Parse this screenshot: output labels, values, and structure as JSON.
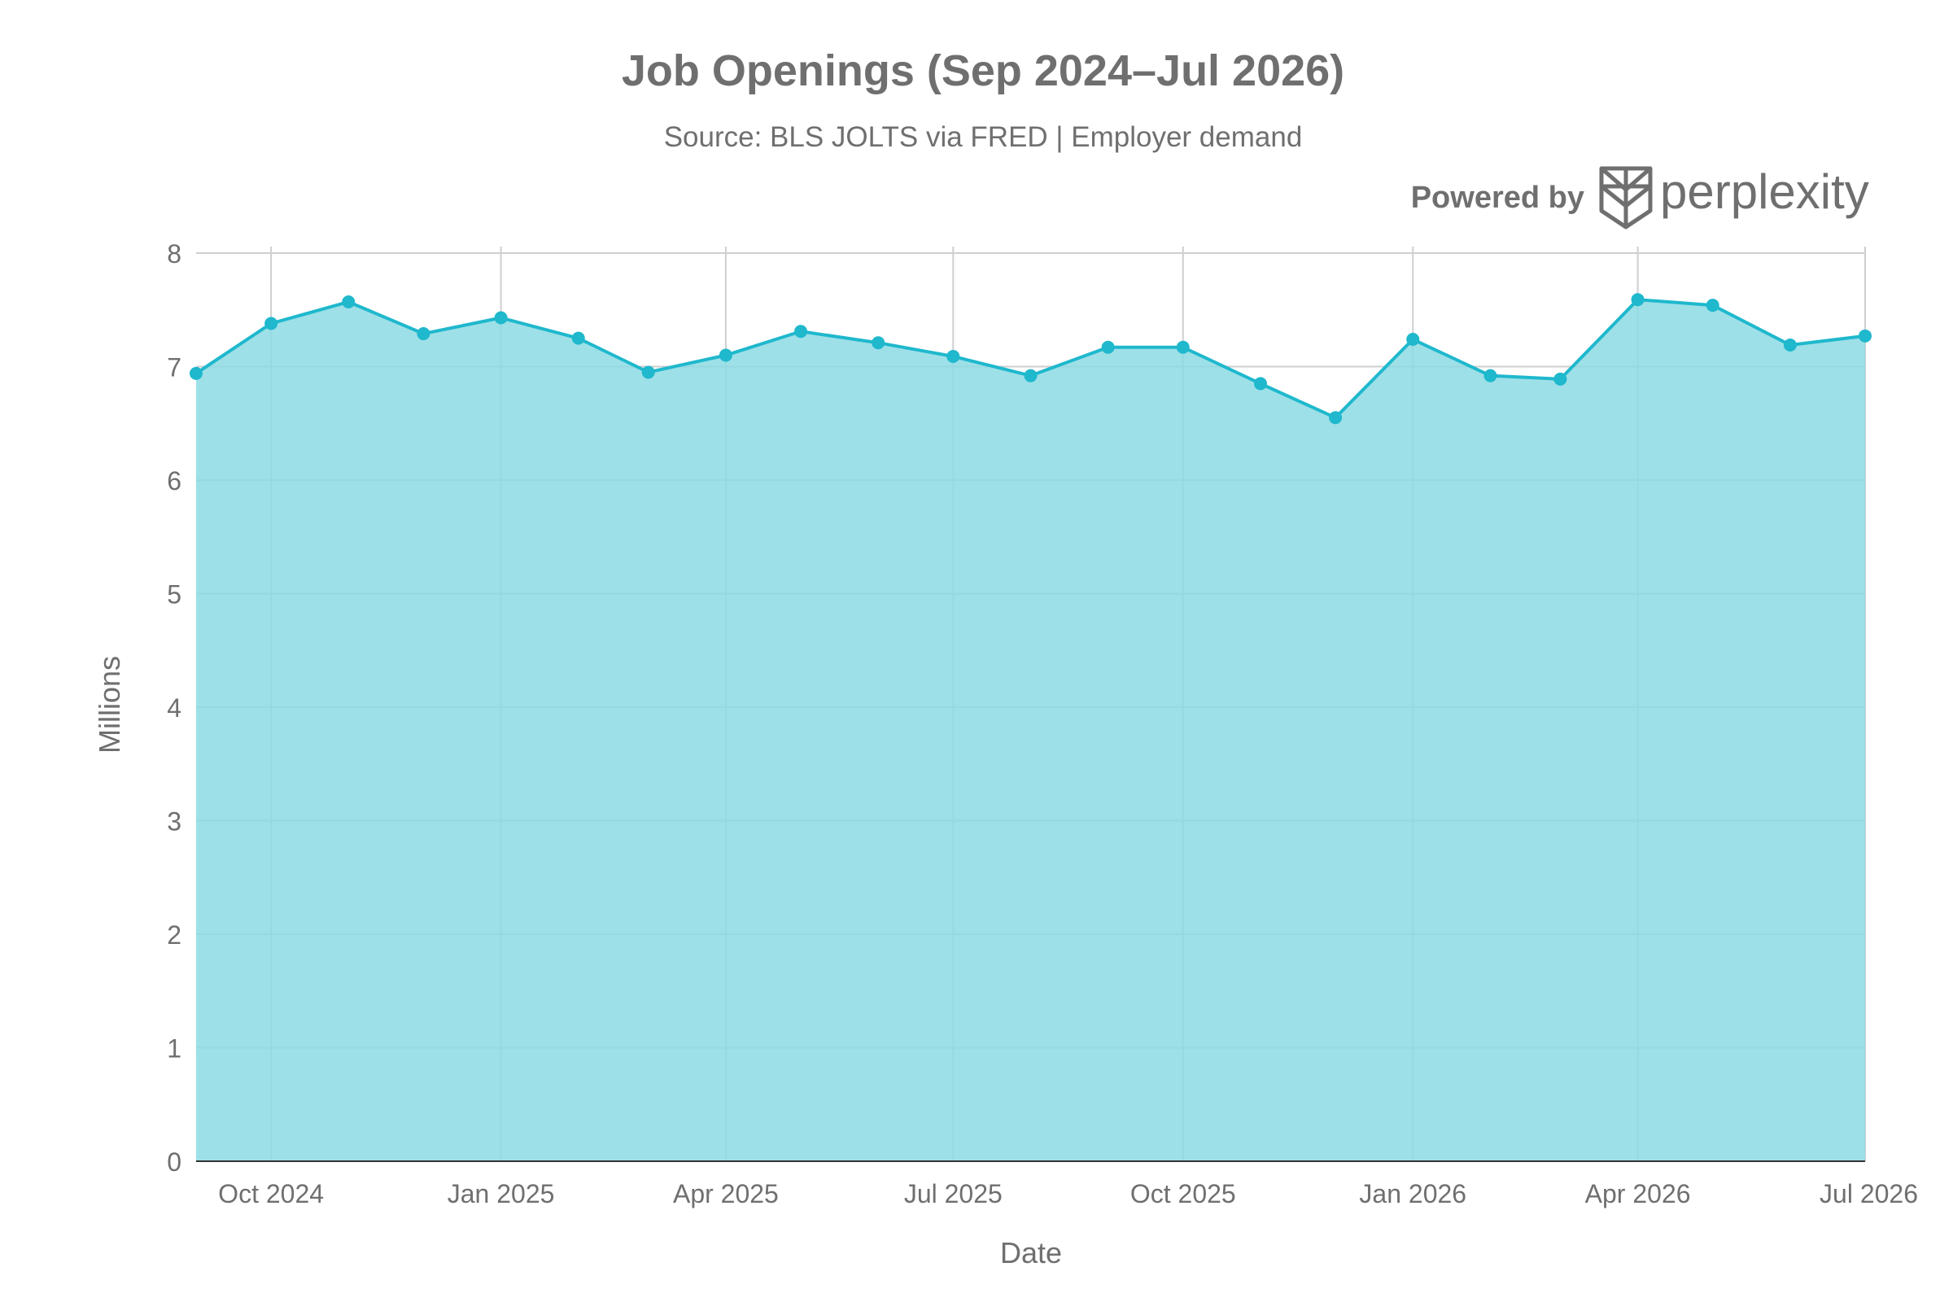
{
  "colors": {
    "line": "#1fb8cd",
    "fill": "#8ddae4",
    "text": "#6f6f6f",
    "grid": "#cfcfcf",
    "axis_line": "#333333"
  },
  "branding": {
    "powered_by": "Powered by",
    "wordmark": "perplexity",
    "logo_icon": "perplexity-logo-icon"
  },
  "chart_data": {
    "type": "area",
    "title": "Job Openings (Sep 2024–Jul 2026)",
    "subtitle": "Source: BLS JOLTS via FRED | Employer demand",
    "xlabel": "Date",
    "ylabel": "Millions",
    "ylim": [
      0,
      8
    ],
    "yticks": [
      "0",
      "1",
      "2",
      "3",
      "4",
      "5",
      "6",
      "7",
      "8"
    ],
    "xlim": [
      "2024-09-01",
      "2026-07-01"
    ],
    "xticks": [
      {
        "date": "2024-10-01",
        "label": "Oct 2024"
      },
      {
        "date": "2025-01-01",
        "label": "Jan 2025"
      },
      {
        "date": "2025-04-01",
        "label": "Apr 2025"
      },
      {
        "date": "2025-07-01",
        "label": "Jul 2025"
      },
      {
        "date": "2025-10-01",
        "label": "Oct 2025"
      },
      {
        "date": "2026-01-01",
        "label": "Jan 2026"
      },
      {
        "date": "2026-04-01",
        "label": "Apr 2026"
      },
      {
        "date": "2026-07-01",
        "label": "Jul 2026"
      }
    ],
    "grid": true,
    "series": [
      {
        "x": [
          "2024-09-01",
          "2024-10-01",
          "2024-11-01",
          "2024-12-01",
          "2025-01-01",
          "2025-02-01",
          "2025-03-01",
          "2025-04-01",
          "2025-05-01",
          "2025-06-01",
          "2025-07-01",
          "2025-08-01",
          "2025-09-01",
          "2025-10-01",
          "2025-11-01",
          "2025-12-01",
          "2026-01-01",
          "2026-02-01",
          "2026-03-01",
          "2026-04-01",
          "2026-05-01",
          "2026-06-01",
          "2026-07-01"
        ],
        "values": [
          6.94,
          7.38,
          7.57,
          7.29,
          7.43,
          7.25,
          6.95,
          7.1,
          7.31,
          7.21,
          7.09,
          6.92,
          7.17,
          7.17,
          6.85,
          6.55,
          7.24,
          6.92,
          6.89,
          7.59,
          7.54,
          7.19,
          7.27
        ]
      }
    ]
  }
}
